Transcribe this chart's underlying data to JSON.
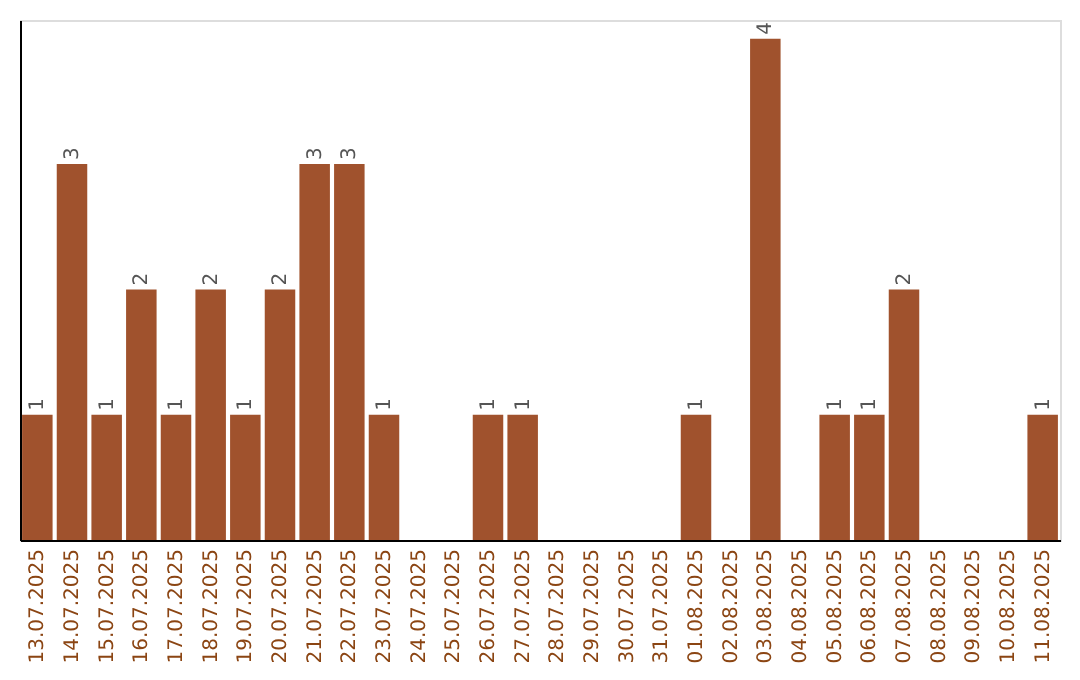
{
  "chart_data": {
    "type": "bar",
    "categories": [
      "13.07.2025",
      "14.07.2025",
      "15.07.2025",
      "16.07.2025",
      "17.07.2025",
      "18.07.2025",
      "19.07.2025",
      "20.07.2025",
      "21.07.2025",
      "22.07.2025",
      "23.07.2025",
      "24.07.2025",
      "25.07.2025",
      "26.07.2025",
      "27.07.2025",
      "28.07.2025",
      "29.07.2025",
      "30.07.2025",
      "31.07.2025",
      "01.08.2025",
      "02.08.2025",
      "03.08.2025",
      "04.08.2025",
      "05.08.2025",
      "06.08.2025",
      "07.08.2025",
      "08.08.2025",
      "09.08.2025",
      "10.08.2025",
      "11.08.2025"
    ],
    "values": [
      1,
      3,
      1,
      2,
      1,
      2,
      1,
      2,
      3,
      3,
      1,
      0,
      0,
      1,
      1,
      0,
      0,
      0,
      0,
      1,
      0,
      4,
      0,
      1,
      1,
      2,
      0,
      0,
      0,
      1
    ],
    "value_labels": [
      "1",
      "3",
      "1",
      "2",
      "1",
      "2",
      "1",
      "2",
      "3",
      "3",
      "1",
      null,
      null,
      "1",
      "1",
      null,
      null,
      null,
      null,
      "1",
      null,
      "4",
      null,
      "1",
      "1",
      "2",
      null,
      null,
      null,
      "1"
    ],
    "color": "#a0522d",
    "ylim": [
      0,
      4.15
    ],
    "tick_labels": "x",
    "grid": false
  }
}
